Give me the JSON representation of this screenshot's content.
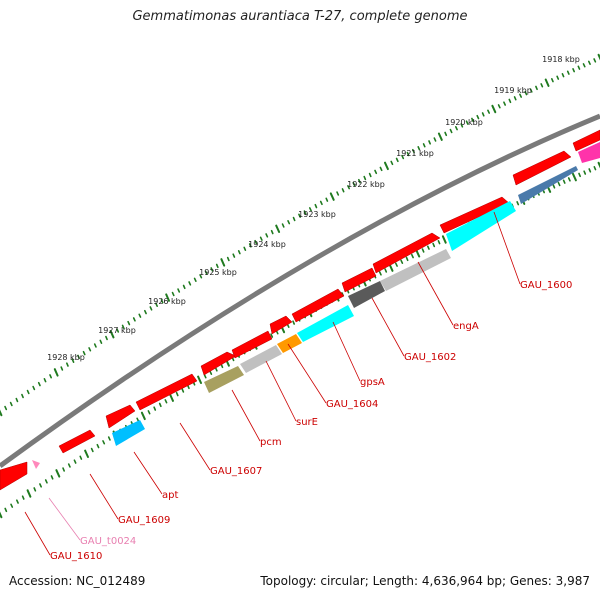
{
  "title": "Gemmatimonas aurantiaca T-27, complete genome",
  "footer": {
    "accession": "Accession: NC_012489",
    "summary": "Topology: circular; Length: 4,636,964 bp; Genes: 3,987"
  },
  "ticks": [
    "1918 kbp",
    "1919 kbp",
    "1920 kbp",
    "1921 kbp",
    "1922 kbp",
    "1923 kbp",
    "1924 kbp",
    "1925 kbp",
    "1926 kbp",
    "1927 kbp",
    "1928 kbp"
  ],
  "colors": {
    "backbone": "#7a7a7a",
    "tick": "#1f7a1f",
    "feature_red": "#ff0000",
    "label_red": "#cc0000",
    "label_pink": "#e87fb0"
  },
  "genes": [
    {
      "name": "GAU_1600",
      "color": "#00ffff"
    },
    {
      "name": "engA",
      "color": "#c0c0c0"
    },
    {
      "name": "GAU_1602",
      "color": "#5a5a5a"
    },
    {
      "name": "gpsA",
      "color": "#00ffff"
    },
    {
      "name": "GAU_1604",
      "color": "#ff9900"
    },
    {
      "name": "surE",
      "color": "#c0c0c0"
    },
    {
      "name": "pcm",
      "color": "#a8a060"
    },
    {
      "name": "GAU_1607",
      "color": "#ffffff"
    },
    {
      "name": "apt",
      "color": "#00bfff"
    },
    {
      "name": "GAU_1609",
      "color": "#ffffff"
    },
    {
      "name": "GAU_t0024",
      "color": "#ff88bb"
    },
    {
      "name": "GAU_1610",
      "color": "#ffffff"
    }
  ]
}
